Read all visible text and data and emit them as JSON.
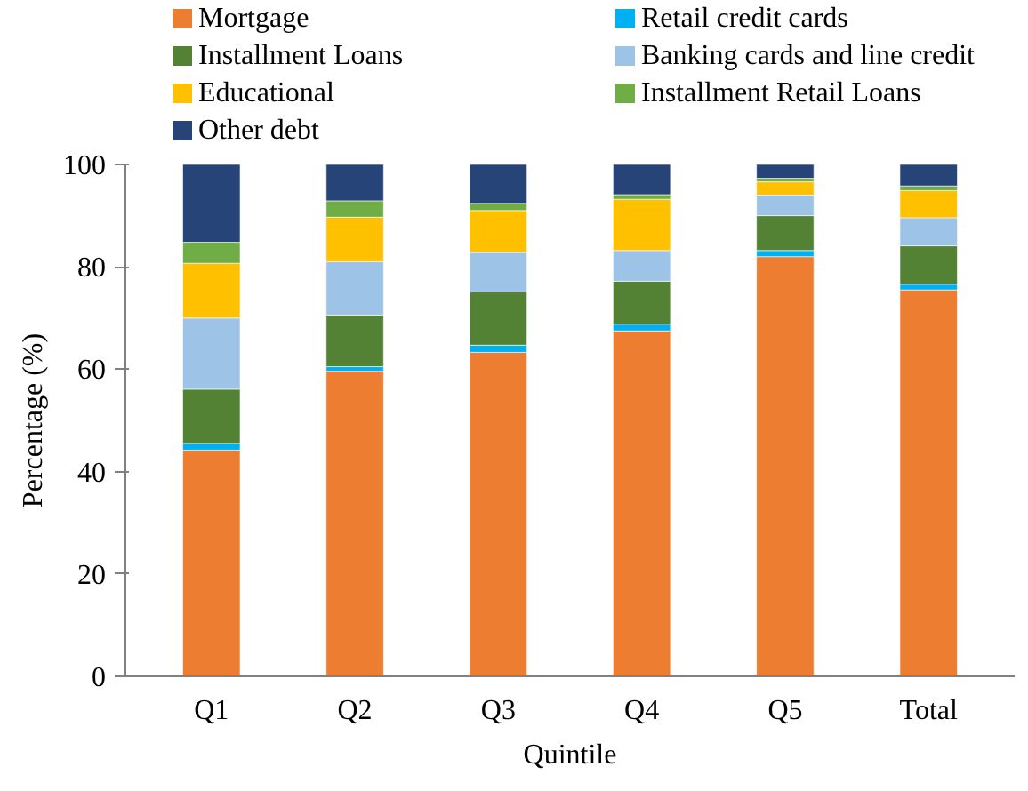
{
  "chart_data": {
    "type": "bar",
    "stacked": true,
    "xlabel": "Quintile",
    "ylabel": "Percentage (%)",
    "categories": [
      "Q1",
      "Q2",
      "Q3",
      "Q4",
      "Q5",
      "Total"
    ],
    "series": [
      {
        "name": "Mortgage",
        "color": "#ed7d31",
        "values": [
          44.2,
          59.6,
          63.3,
          67.5,
          82.0,
          75.5
        ]
      },
      {
        "name": "Retail credit cards",
        "color": "#00b0f0",
        "values": [
          1.3,
          0.9,
          1.4,
          1.3,
          1.2,
          1.1
        ]
      },
      {
        "name": "Installment Loans",
        "color": "#548235",
        "values": [
          10.6,
          10.1,
          10.4,
          8.4,
          6.8,
          7.5
        ]
      },
      {
        "name": "Banking cards and line credit",
        "color": "#9dc3e6",
        "values": [
          13.9,
          10.4,
          7.7,
          6.0,
          4.0,
          5.5
        ]
      },
      {
        "name": "Educational",
        "color": "#ffc000",
        "values": [
          10.7,
          8.7,
          8.2,
          10.0,
          2.6,
          5.3
        ]
      },
      {
        "name": "Installment Retail Loans",
        "color": "#70ad47",
        "values": [
          4.1,
          3.2,
          1.4,
          0.9,
          0.7,
          0.9
        ]
      },
      {
        "name": "Other debt",
        "color": "#264478",
        "values": [
          15.2,
          7.1,
          7.6,
          5.9,
          2.7,
          4.2
        ]
      }
    ],
    "ylim": [
      0,
      100
    ],
    "yticks": [
      0,
      20,
      40,
      60,
      80,
      100
    ],
    "grid": false,
    "legend": "top"
  }
}
